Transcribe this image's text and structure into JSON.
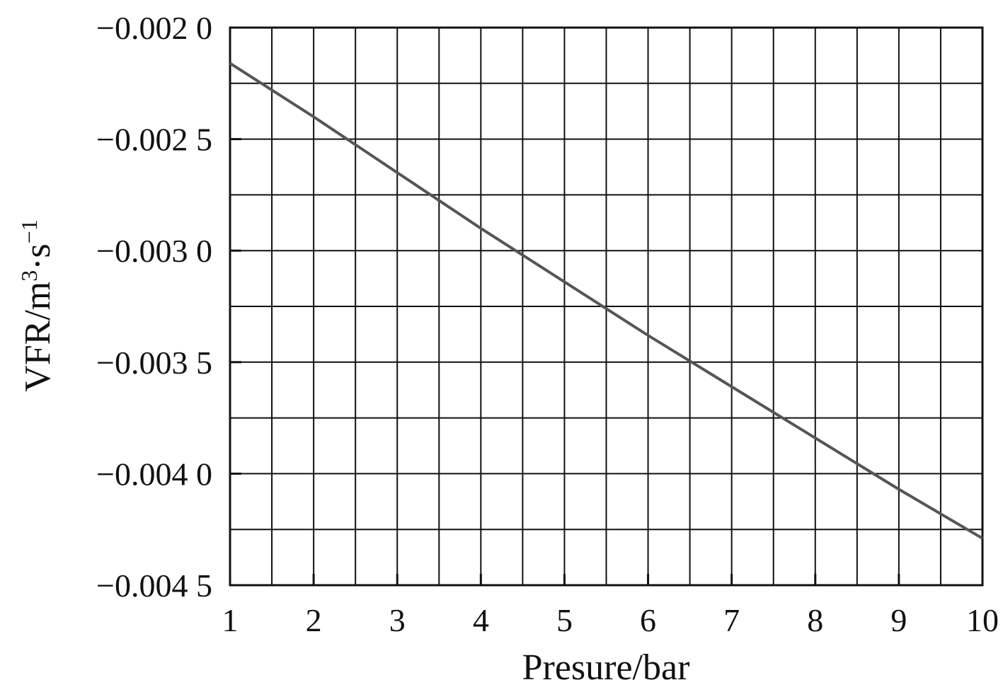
{
  "chart_data": {
    "type": "line",
    "xlabel": "Presure/bar",
    "ylabel": {
      "prefix": "VFR/m",
      "exp1": "3",
      "middle": "·s",
      "exp2": "−1"
    },
    "xlim": [
      1,
      10
    ],
    "ylim": [
      -0.0045,
      -0.002
    ],
    "x_ticks": [
      1,
      2,
      3,
      4,
      5,
      6,
      7,
      8,
      9,
      10
    ],
    "x_tick_labels": [
      "1",
      "2",
      "3",
      "4",
      "5",
      "6",
      "7",
      "8",
      "9",
      "10"
    ],
    "y_ticks": [
      -0.002,
      -0.0025,
      -0.003,
      -0.0035,
      -0.004,
      -0.0045
    ],
    "y_tick_labels": [
      "−0.002 0",
      "−0.002 5",
      "−0.003 0",
      "−0.003 5",
      "−0.004 0",
      "−0.004 5"
    ],
    "grid": true,
    "grid_x_step": 0.5,
    "grid_y_step": 0.00025,
    "line_color": "#555555",
    "series": [
      {
        "x": [
          1,
          2,
          3,
          4,
          5,
          6,
          7,
          8,
          9,
          10
        ],
        "y": [
          -0.00216,
          -0.0024,
          -0.00265,
          -0.0029,
          -0.00314,
          -0.00338,
          -0.00361,
          -0.00384,
          -0.00407,
          -0.00429
        ]
      }
    ]
  }
}
